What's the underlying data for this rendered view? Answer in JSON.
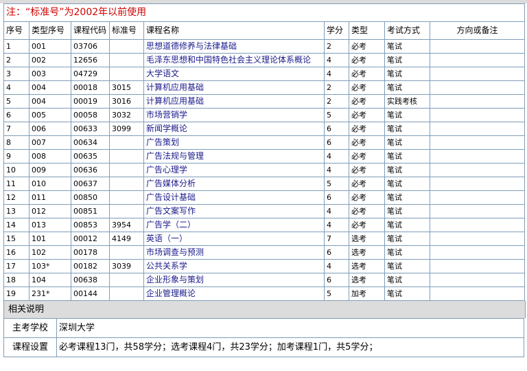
{
  "note": "注：“标准号”为2002年以前使用",
  "headers": [
    "序号",
    "类型序号",
    "课程代码",
    "标准号",
    "课程名称",
    "学分",
    "类型",
    "考试方式",
    "方向或备注"
  ],
  "rows": [
    [
      "1",
      "001",
      "03706",
      "",
      "思想道德修养与法律基础",
      "2",
      "必考",
      "笔试",
      ""
    ],
    [
      "2",
      "002",
      "12656",
      "",
      "毛泽东思想和中国特色社会主义理论体系概论",
      "4",
      "必考",
      "笔试",
      ""
    ],
    [
      "3",
      "003",
      "04729",
      "",
      "大学语文",
      "4",
      "必考",
      "笔试",
      ""
    ],
    [
      "4",
      "004",
      "00018",
      "3015",
      "计算机应用基础",
      "2",
      "必考",
      "笔试",
      ""
    ],
    [
      "5",
      "004",
      "00019",
      "3016",
      "计算机应用基础",
      "2",
      "必考",
      "实践考核",
      ""
    ],
    [
      "6",
      "005",
      "00058",
      "3032",
      "市场营销学",
      "5",
      "必考",
      "笔试",
      ""
    ],
    [
      "7",
      "006",
      "00633",
      "3099",
      "新闻学概论",
      "6",
      "必考",
      "笔试",
      ""
    ],
    [
      "8",
      "007",
      "00634",
      "",
      "广告策划",
      "6",
      "必考",
      "笔试",
      ""
    ],
    [
      "9",
      "008",
      "00635",
      "",
      "广告法规与管理",
      "4",
      "必考",
      "笔试",
      ""
    ],
    [
      "10",
      "009",
      "00636",
      "",
      "广告心理学",
      "4",
      "必考",
      "笔试",
      ""
    ],
    [
      "11",
      "010",
      "00637",
      "",
      "广告媒体分析",
      "5",
      "必考",
      "笔试",
      ""
    ],
    [
      "12",
      "011",
      "00850",
      "",
      "广告设计基础",
      "6",
      "必考",
      "笔试",
      ""
    ],
    [
      "13",
      "012",
      "00851",
      "",
      "广告文案写作",
      "4",
      "必考",
      "笔试",
      ""
    ],
    [
      "14",
      "013",
      "00853",
      "3954",
      "广告学（二）",
      "4",
      "必考",
      "笔试",
      ""
    ],
    [
      "15",
      "101",
      "00012",
      "4149",
      "英语（一）",
      "7",
      "选考",
      "笔试",
      ""
    ],
    [
      "16",
      "102",
      "00178",
      "",
      "市场调查与预测",
      "6",
      "选考",
      "笔试",
      ""
    ],
    [
      "17",
      "103*",
      "00182",
      "3039",
      "公共关系学",
      "4",
      "选考",
      "笔试",
      ""
    ],
    [
      "18",
      "104",
      "00638",
      "",
      "企业形象与策划",
      "6",
      "选考",
      "笔试",
      ""
    ],
    [
      "19",
      "231*",
      "00144",
      "",
      "企业管理概论",
      "5",
      "加考",
      "笔试",
      ""
    ]
  ],
  "section_title": "相关说明",
  "info": [
    {
      "key": "主考学校",
      "value": "深圳大学"
    },
    {
      "key": "课程设置",
      "value": "必考课程13门，共58学分；选考课程4门，共23学分；加考课程1门，共5学分；"
    }
  ]
}
